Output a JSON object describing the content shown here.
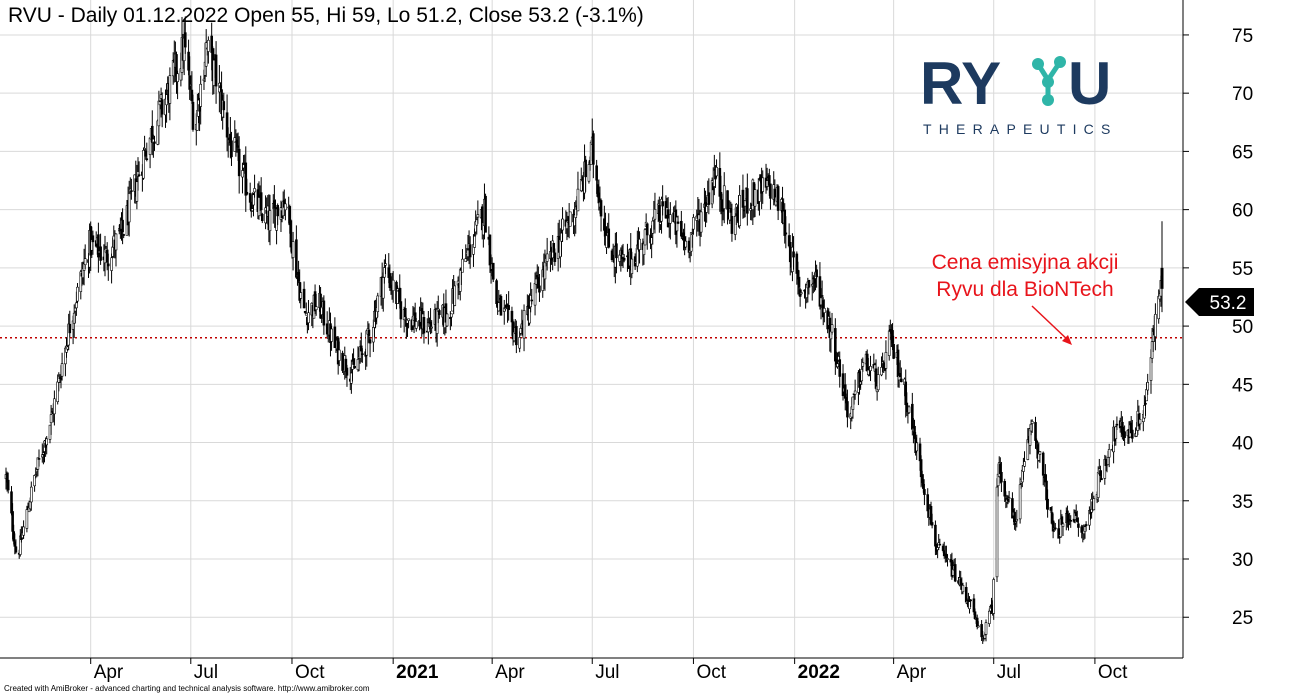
{
  "header": {
    "title": "RVU - Daily 01.12.2022 Open 55, Hi 59, Lo 51.2, Close 53.2 (-3.1%)"
  },
  "footer": {
    "credit": "Created with AmiBroker - advanced charting and technical analysis software. http://www.amibroker.com"
  },
  "logo": {
    "text": "RYVU",
    "subtitle": "THERAPEUTICS"
  },
  "annotation": {
    "line1": "Cena emisyjna akcji",
    "line2": "Ryvu dla BioNTech"
  },
  "last_price_label": "53.2",
  "colors": {
    "candles": "#000000",
    "reference_line": "#c00000",
    "annotation": "#e8141b",
    "logo_dark": "#1d3a5f",
    "logo_accent": "#2fb5a8"
  },
  "chart_data": {
    "type": "candlestick",
    "ticker": "RVU",
    "interval": "Daily",
    "ylim": [
      21.5,
      78
    ],
    "y_ticks": [
      25,
      30,
      35,
      40,
      45,
      50,
      55,
      60,
      65,
      70,
      75
    ],
    "x_ticks": [
      {
        "label": "Apr",
        "date": "2020-04-01",
        "bold": false
      },
      {
        "label": "Jul",
        "date": "2020-07-01",
        "bold": false
      },
      {
        "label": "Oct",
        "date": "2020-10-01",
        "bold": false
      },
      {
        "label": "2021",
        "date": "2021-01-01",
        "bold": true
      },
      {
        "label": "Apr",
        "date": "2021-04-01",
        "bold": false
      },
      {
        "label": "Jul",
        "date": "2021-07-01",
        "bold": false
      },
      {
        "label": "Oct",
        "date": "2021-10-01",
        "bold": false
      },
      {
        "label": "2022",
        "date": "2022-01-01",
        "bold": true
      },
      {
        "label": "Apr",
        "date": "2022-04-01",
        "bold": false
      },
      {
        "label": "Jul",
        "date": "2022-07-01",
        "bold": false
      },
      {
        "label": "Oct",
        "date": "2022-10-01",
        "bold": false
      }
    ],
    "date_range": [
      "2020-01-15",
      "2022-12-01"
    ],
    "reference_line": {
      "value": 49,
      "style": "dotted"
    },
    "last_bar": {
      "date": "2022-12-01",
      "open": 55,
      "high": 59,
      "low": 51.2,
      "close": 53.2,
      "change_pct": -3.1
    },
    "close_path": [
      {
        "date": "2020-01-15",
        "close": 37
      },
      {
        "date": "2020-01-25",
        "close": 30
      },
      {
        "date": "2020-02-10",
        "close": 37
      },
      {
        "date": "2020-02-25",
        "close": 42
      },
      {
        "date": "2020-03-15",
        "close": 51
      },
      {
        "date": "2020-03-31",
        "close": 57
      },
      {
        "date": "2020-04-15",
        "close": 56
      },
      {
        "date": "2020-04-30",
        "close": 58
      },
      {
        "date": "2020-05-20",
        "close": 65
      },
      {
        "date": "2020-06-10",
        "close": 70
      },
      {
        "date": "2020-06-25",
        "close": 74
      },
      {
        "date": "2020-07-05",
        "close": 67
      },
      {
        "date": "2020-07-15",
        "close": 74
      },
      {
        "date": "2020-07-25",
        "close": 71
      },
      {
        "date": "2020-08-05",
        "close": 66
      },
      {
        "date": "2020-08-25",
        "close": 61
      },
      {
        "date": "2020-09-10",
        "close": 59
      },
      {
        "date": "2020-09-25",
        "close": 61
      },
      {
        "date": "2020-10-05",
        "close": 55
      },
      {
        "date": "2020-10-12",
        "close": 51
      },
      {
        "date": "2020-10-25",
        "close": 52
      },
      {
        "date": "2020-11-10",
        "close": 48
      },
      {
        "date": "2020-11-25",
        "close": 46
      },
      {
        "date": "2020-12-10",
        "close": 49
      },
      {
        "date": "2020-12-25",
        "close": 55
      },
      {
        "date": "2021-01-10",
        "close": 51
      },
      {
        "date": "2021-02-01",
        "close": 50
      },
      {
        "date": "2021-02-20",
        "close": 51
      },
      {
        "date": "2021-03-05",
        "close": 55
      },
      {
        "date": "2021-03-25",
        "close": 60
      },
      {
        "date": "2021-04-05",
        "close": 52
      },
      {
        "date": "2021-04-25",
        "close": 49
      },
      {
        "date": "2021-05-10",
        "close": 53
      },
      {
        "date": "2021-05-25",
        "close": 56
      },
      {
        "date": "2021-06-15",
        "close": 60
      },
      {
        "date": "2021-07-01",
        "close": 65
      },
      {
        "date": "2021-07-15",
        "close": 57
      },
      {
        "date": "2021-08-01",
        "close": 55
      },
      {
        "date": "2021-08-20",
        "close": 58
      },
      {
        "date": "2021-09-05",
        "close": 60
      },
      {
        "date": "2021-09-25",
        "close": 57
      },
      {
        "date": "2021-10-10",
        "close": 60
      },
      {
        "date": "2021-10-20",
        "close": 63
      },
      {
        "date": "2021-11-05",
        "close": 59
      },
      {
        "date": "2021-11-20",
        "close": 61
      },
      {
        "date": "2021-12-10",
        "close": 62
      },
      {
        "date": "2021-12-20",
        "close": 60
      },
      {
        "date": "2022-01-05",
        "close": 53
      },
      {
        "date": "2022-01-20",
        "close": 54
      },
      {
        "date": "2022-02-05",
        "close": 49
      },
      {
        "date": "2022-02-20",
        "close": 42
      },
      {
        "date": "2022-03-05",
        "close": 47
      },
      {
        "date": "2022-03-20",
        "close": 45
      },
      {
        "date": "2022-03-28",
        "close": 49
      },
      {
        "date": "2022-04-10",
        "close": 45
      },
      {
        "date": "2022-04-25",
        "close": 38
      },
      {
        "date": "2022-05-10",
        "close": 31
      },
      {
        "date": "2022-05-25",
        "close": 29
      },
      {
        "date": "2022-06-10",
        "close": 26
      },
      {
        "date": "2022-06-20",
        "close": 23
      },
      {
        "date": "2022-06-30",
        "close": 26
      },
      {
        "date": "2022-07-05",
        "close": 38
      },
      {
        "date": "2022-07-20",
        "close": 33
      },
      {
        "date": "2022-08-05",
        "close": 42
      },
      {
        "date": "2022-08-15",
        "close": 37
      },
      {
        "date": "2022-08-25",
        "close": 32
      },
      {
        "date": "2022-09-10",
        "close": 34
      },
      {
        "date": "2022-09-20",
        "close": 32
      },
      {
        "date": "2022-10-05",
        "close": 37
      },
      {
        "date": "2022-10-20",
        "close": 41
      },
      {
        "date": "2022-11-05",
        "close": 41
      },
      {
        "date": "2022-11-15",
        "close": 43
      },
      {
        "date": "2022-11-30",
        "close": 54
      },
      {
        "date": "2022-12-01",
        "close": 53.2
      }
    ]
  }
}
